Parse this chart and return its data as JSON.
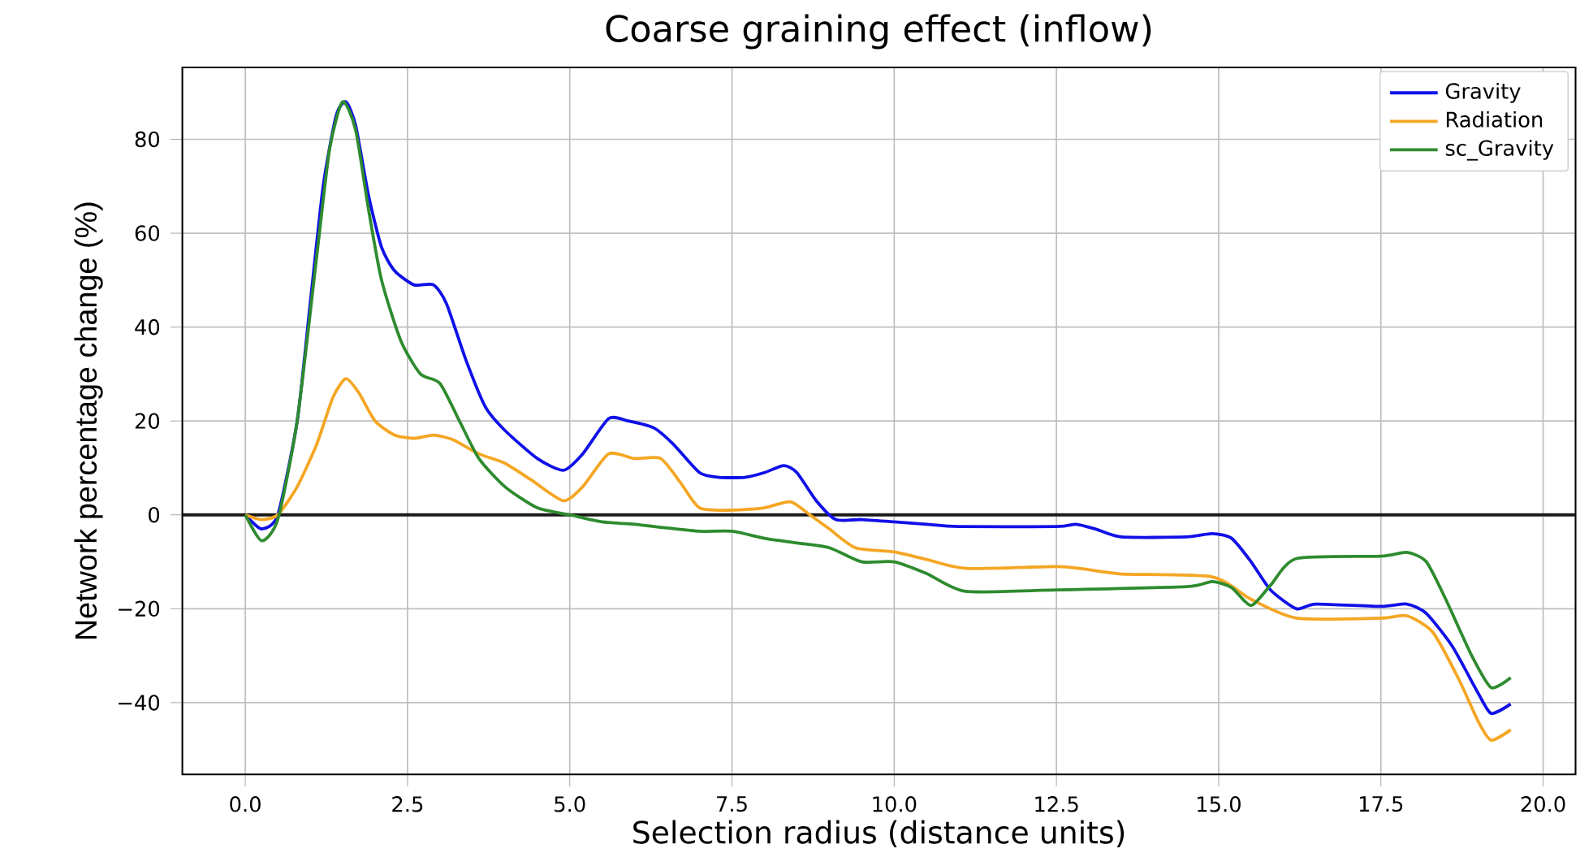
{
  "chart_data": {
    "type": "line",
    "title": "Coarse graining effect (inflow)",
    "xlabel": "Selection radius (distance units)",
    "ylabel": "Network percentage change (%)",
    "xlim": [
      -0.97,
      20.5
    ],
    "ylim": [
      -55.3,
      95.3
    ],
    "xticks": [
      {
        "value": 0,
        "label": "0.0"
      },
      2.5,
      {
        "value": 5,
        "label": "5.0"
      },
      7.5,
      {
        "value": 10,
        "label": "10.0"
      },
      12.5,
      {
        "value": 15,
        "label": "15.0"
      },
      17.5,
      {
        "value": 20,
        "label": "20.0"
      }
    ],
    "yticks": [
      {
        "value": -40,
        "label": "−40"
      },
      {
        "value": -20,
        "label": "−20"
      },
      0,
      20,
      40,
      60,
      80
    ],
    "grid": true,
    "legend": "top right",
    "line_style": "solid",
    "marker": "none",
    "ref_lines": [
      {
        "axis": "y",
        "value": 0,
        "color": "#1a1a1a"
      }
    ],
    "series": [
      {
        "name": "Gravity",
        "color": "#1010e8",
        "x": [
          0,
          0.25,
          0.5,
          0.8,
          1.0,
          1.2,
          1.4,
          1.55,
          1.7,
          1.9,
          2.1,
          2.3,
          2.6,
          2.9,
          3.1,
          3.4,
          3.7,
          4.0,
          4.5,
          4.9,
          5.2,
          5.6,
          5.9,
          6.3,
          6.6,
          7.0,
          7.3,
          7.7,
          8.0,
          8.3,
          8.5,
          8.8,
          9.1,
          9.5,
          10,
          10.5,
          11,
          12.5,
          12.8,
          13.1,
          13.5,
          14.5,
          14.9,
          15.2,
          15.5,
          15.8,
          16.2,
          16.5,
          17.5,
          17.9,
          18.2,
          18.6,
          19.0,
          19.2,
          19.5
        ],
        "values": [
          0,
          -3,
          0,
          20,
          45,
          70,
          85,
          88,
          83,
          68,
          57,
          52,
          49,
          49,
          45,
          33,
          23,
          18,
          12,
          9.5,
          13,
          20.5,
          20,
          18.5,
          15,
          9,
          8,
          8,
          9,
          10.5,
          9,
          3,
          -1,
          -1,
          -1.5,
          -2,
          -2.5,
          -2.5,
          -2,
          -3,
          -4.7,
          -4.7,
          -4,
          -5,
          -10,
          -16,
          -20,
          -19,
          -19.5,
          -19,
          -21,
          -28,
          -38,
          -42.3,
          -40.3
        ]
      },
      {
        "name": "Radiation",
        "color": "#f5a623",
        "x": [
          0,
          0.25,
          0.5,
          0.8,
          1.1,
          1.35,
          1.55,
          1.75,
          2.0,
          2.3,
          2.6,
          2.9,
          3.2,
          3.6,
          4.0,
          4.4,
          4.9,
          5.2,
          5.6,
          6.0,
          6.4,
          6.7,
          7.0,
          7.5,
          8.0,
          8.4,
          8.7,
          9.0,
          9.4,
          10.0,
          10.5,
          11.1,
          12.5,
          12.9,
          13.5,
          14.9,
          15.5,
          16.2,
          17.5,
          17.9,
          18.3,
          18.7,
          19.0,
          19.2,
          19.5
        ],
        "values": [
          0,
          -1,
          0,
          6,
          15,
          25,
          29,
          26,
          20,
          17,
          16.3,
          17,
          16,
          13,
          11,
          7.5,
          3,
          6,
          13,
          12,
          12,
          7,
          1.5,
          1,
          1.5,
          2.8,
          0,
          -3,
          -7,
          -7.9,
          -9.5,
          -11.4,
          -11,
          -11.5,
          -12.6,
          -13.2,
          -18,
          -22,
          -22,
          -21.5,
          -25,
          -35,
          -44,
          -48,
          -45.8
        ]
      },
      {
        "name": "sc_Gravity",
        "color": "#2e8b2e",
        "x": [
          0,
          0.25,
          0.5,
          0.8,
          1.1,
          1.3,
          1.5,
          1.7,
          1.9,
          2.1,
          2.4,
          2.7,
          3.0,
          3.3,
          3.6,
          4.0,
          4.5,
          5.0,
          5.5,
          6.0,
          6.5,
          7.0,
          7.5,
          8.0,
          8.5,
          9.0,
          9.5,
          10.0,
          10.5,
          11.1,
          12.5,
          14.5,
          14.9,
          15.2,
          15.5,
          15.8,
          16.2,
          17.5,
          17.9,
          18.2,
          18.5,
          18.9,
          19.2,
          19.5
        ],
        "values": [
          0,
          -5.5,
          -1,
          20,
          55,
          78,
          88,
          82,
          65,
          50,
          37,
          30,
          28,
          20,
          12,
          6,
          1.5,
          0,
          -1.5,
          -2,
          -2.8,
          -3.5,
          -3.5,
          -5,
          -6,
          -7,
          -10,
          -10,
          -12.5,
          -16.3,
          -16,
          -15.3,
          -14.2,
          -15.5,
          -19.3,
          -15,
          -9.3,
          -8.8,
          -8,
          -10,
          -18,
          -30,
          -36.8,
          -34.7
        ]
      }
    ]
  }
}
